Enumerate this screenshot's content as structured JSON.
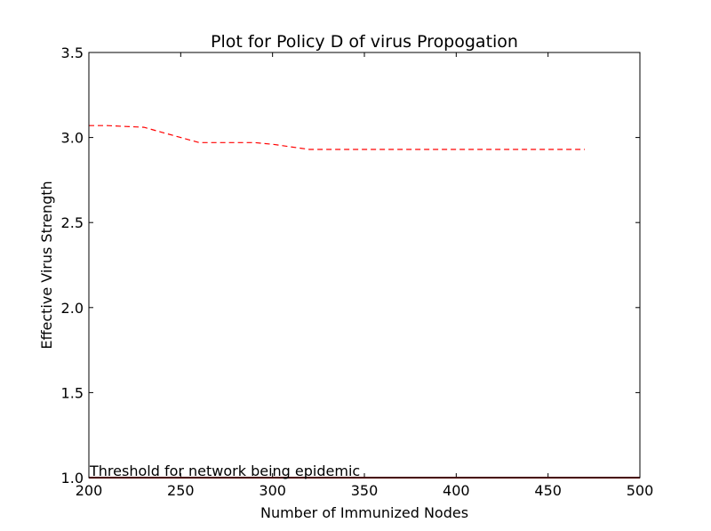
{
  "chart_data": {
    "type": "line",
    "title": "Plot for Policy D of virus Propogation",
    "xlabel": "Number of Immunized Nodes",
    "ylabel": "Effective Virus Strength",
    "xlim": [
      200,
      500
    ],
    "ylim": [
      1.0,
      3.5
    ],
    "xticks": [
      "200",
      "250",
      "300",
      "350",
      "400",
      "450",
      "500"
    ],
    "yticks": [
      "1.0",
      "1.5",
      "2.0",
      "2.5",
      "3.0",
      "3.5"
    ],
    "grid": false,
    "series": [
      {
        "style": "dashed",
        "color": "#ff0000",
        "x": [
          200,
          210,
          220,
          230,
          240,
          250,
          260,
          270,
          280,
          290,
          300,
          310,
          320,
          330,
          340,
          350,
          360,
          370,
          380,
          390,
          400,
          410,
          420,
          430,
          440,
          450,
          460,
          470
        ],
        "y": [
          3.07,
          3.07,
          3.065,
          3.06,
          3.03,
          3.0,
          2.97,
          2.97,
          2.97,
          2.97,
          2.96,
          2.945,
          2.93,
          2.93,
          2.93,
          2.93,
          2.93,
          2.93,
          2.93,
          2.93,
          2.93,
          2.93,
          2.93,
          2.93,
          2.93,
          2.93,
          2.93,
          2.93
        ]
      }
    ],
    "threshold": {
      "y": 1.0,
      "color": "#8b0000",
      "label": "Threshold for network being epidemic"
    }
  }
}
